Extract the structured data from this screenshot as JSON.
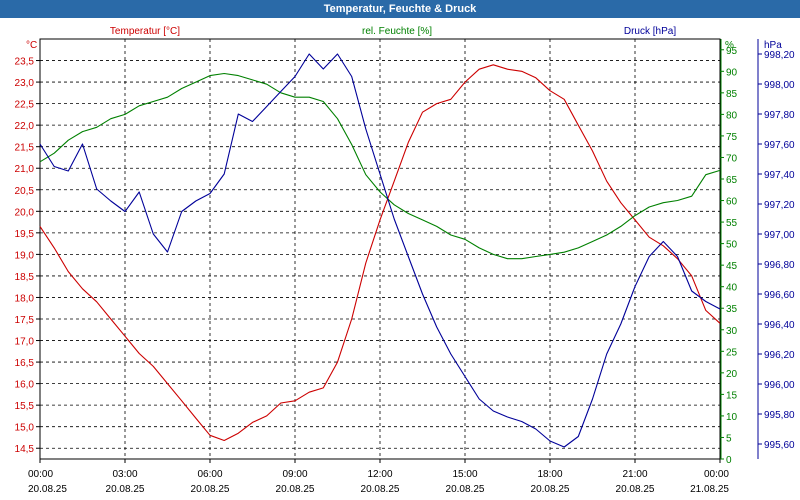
{
  "title": "Temperatur, Feuchte & Druck",
  "chart_data": {
    "type": "line",
    "title": "Temperatur, Feuchte & Druck",
    "x_labels": [
      {
        "time": "00:00",
        "date": "20.08.25"
      },
      {
        "time": "03:00",
        "date": "20.08.25"
      },
      {
        "time": "06:00",
        "date": "20.08.25"
      },
      {
        "time": "09:00",
        "date": "20.08.25"
      },
      {
        "time": "12:00",
        "date": "20.08.25"
      },
      {
        "time": "15:00",
        "date": "20.08.25"
      },
      {
        "time": "18:00",
        "date": "20.08.25"
      },
      {
        "time": "21:00",
        "date": "20.08.25"
      },
      {
        "time": "00:00",
        "date": "21.08.25"
      }
    ],
    "xlim": [
      0,
      24
    ],
    "axes": {
      "temperature": {
        "label": "Temperatur [°C]",
        "unit": "°C",
        "color": "#cc0000",
        "ylim": [
          14.25,
          24.0
        ],
        "ticks": [
          "14,5",
          "15,0",
          "15,5",
          "16,0",
          "16,5",
          "17,0",
          "17,5",
          "18,0",
          "18,5",
          "19,0",
          "19,5",
          "20,0",
          "20,5",
          "21,0",
          "21,5",
          "22,0",
          "22,5",
          "23,0",
          "23,5"
        ]
      },
      "humidity": {
        "label": "rel. Feuchte [%]",
        "unit": "%",
        "color": "#008000",
        "ylim": [
          0,
          97.5
        ],
        "ticks": [
          "0",
          "5",
          "10",
          "15",
          "20",
          "25",
          "30",
          "35",
          "40",
          "45",
          "50",
          "55",
          "60",
          "65",
          "70",
          "75",
          "80",
          "85",
          "90",
          "95"
        ]
      },
      "pressure": {
        "label": "Druck [hPa]",
        "unit": "hPa",
        "color": "#000099",
        "ylim": [
          995.5,
          998.3
        ],
        "ticks": [
          "995,60",
          "995,80",
          "996,00",
          "996,20",
          "996,40",
          "996,60",
          "996,80",
          "997,00",
          "997,20",
          "997,40",
          "997,60",
          "997,80",
          "998,00",
          "998,20"
        ]
      }
    },
    "series": [
      {
        "name": "Temperatur [°C]",
        "axis": "temperature",
        "color": "#cc0000",
        "points": [
          [
            0,
            19.65
          ],
          [
            0.5,
            19.15
          ],
          [
            1,
            18.6
          ],
          [
            1.5,
            18.2
          ],
          [
            2,
            17.9
          ],
          [
            2.5,
            17.5
          ],
          [
            3,
            17.1
          ],
          [
            3.5,
            16.7
          ],
          [
            4,
            16.4
          ],
          [
            4.5,
            16.0
          ],
          [
            5,
            15.6
          ],
          [
            5.5,
            15.2
          ],
          [
            6,
            14.8
          ],
          [
            6.5,
            14.68
          ],
          [
            7,
            14.85
          ],
          [
            7.5,
            15.1
          ],
          [
            8,
            15.25
          ],
          [
            8.5,
            15.55
          ],
          [
            9,
            15.6
          ],
          [
            9.5,
            15.8
          ],
          [
            10,
            15.9
          ],
          [
            10.5,
            16.5
          ],
          [
            11,
            17.5
          ],
          [
            11.5,
            18.8
          ],
          [
            12,
            19.8
          ],
          [
            12.5,
            20.7
          ],
          [
            13,
            21.6
          ],
          [
            13.5,
            22.3
          ],
          [
            14,
            22.5
          ],
          [
            14.5,
            22.6
          ],
          [
            15,
            23.0
          ],
          [
            15.5,
            23.3
          ],
          [
            16,
            23.4
          ],
          [
            16.5,
            23.3
          ],
          [
            17,
            23.25
          ],
          [
            17.5,
            23.1
          ],
          [
            18,
            22.8
          ],
          [
            18.5,
            22.6
          ],
          [
            19,
            22.0
          ],
          [
            19.5,
            21.4
          ],
          [
            20,
            20.7
          ],
          [
            20.5,
            20.2
          ],
          [
            21,
            19.8
          ],
          [
            21.5,
            19.4
          ],
          [
            22,
            19.2
          ],
          [
            22.5,
            18.9
          ],
          [
            23,
            18.5
          ],
          [
            23.5,
            17.7
          ],
          [
            24,
            17.4
          ]
        ]
      },
      {
        "name": "rel. Feuchte [%]",
        "axis": "humidity",
        "color": "#008000",
        "points": [
          [
            0,
            69
          ],
          [
            0.5,
            71
          ],
          [
            1,
            74
          ],
          [
            1.5,
            76
          ],
          [
            2,
            77
          ],
          [
            2.5,
            79
          ],
          [
            3,
            80
          ],
          [
            3.5,
            82
          ],
          [
            4,
            83
          ],
          [
            4.5,
            84
          ],
          [
            5,
            86
          ],
          [
            5.5,
            87.5
          ],
          [
            6,
            89
          ],
          [
            6.5,
            89.5
          ],
          [
            7,
            89
          ],
          [
            7.5,
            88
          ],
          [
            8,
            87
          ],
          [
            8.5,
            85
          ],
          [
            9,
            84
          ],
          [
            9.5,
            84
          ],
          [
            10,
            83
          ],
          [
            10.5,
            79
          ],
          [
            11,
            73
          ],
          [
            11.5,
            66
          ],
          [
            12,
            62
          ],
          [
            12.5,
            59
          ],
          [
            13,
            57
          ],
          [
            13.5,
            55.5
          ],
          [
            14,
            54
          ],
          [
            14.5,
            52
          ],
          [
            15,
            51
          ],
          [
            15.5,
            49
          ],
          [
            16,
            47.5
          ],
          [
            16.5,
            46.5
          ],
          [
            17,
            46.5
          ],
          [
            17.5,
            47
          ],
          [
            18,
            47.5
          ],
          [
            18.5,
            48
          ],
          [
            19,
            49
          ],
          [
            19.5,
            50.5
          ],
          [
            20,
            52
          ],
          [
            20.5,
            54
          ],
          [
            21,
            56.5
          ],
          [
            21.5,
            58.5
          ],
          [
            22,
            59.5
          ],
          [
            22.5,
            60
          ],
          [
            23,
            61
          ],
          [
            23.5,
            66
          ],
          [
            24,
            67
          ]
        ]
      },
      {
        "name": "Druck [hPa]",
        "axis": "pressure",
        "color": "#000099",
        "points": [
          [
            0,
            997.6
          ],
          [
            0.5,
            997.45
          ],
          [
            1,
            997.42
          ],
          [
            1.5,
            997.6
          ],
          [
            2,
            997.3
          ],
          [
            2.5,
            997.22
          ],
          [
            3,
            997.15
          ],
          [
            3.5,
            997.28
          ],
          [
            4,
            997.0
          ],
          [
            4.5,
            996.88
          ],
          [
            5,
            997.15
          ],
          [
            5.5,
            997.22
          ],
          [
            6,
            997.27
          ],
          [
            6.5,
            997.4
          ],
          [
            7,
            997.8
          ],
          [
            7.5,
            997.75
          ],
          [
            8,
            997.85
          ],
          [
            8.5,
            997.95
          ],
          [
            9,
            998.05
          ],
          [
            9.5,
            998.2
          ],
          [
            10,
            998.1
          ],
          [
            10.5,
            998.2
          ],
          [
            11,
            998.05
          ],
          [
            11.5,
            997.7
          ],
          [
            12,
            997.4
          ],
          [
            12.5,
            997.1
          ],
          [
            13,
            996.85
          ],
          [
            13.5,
            996.6
          ],
          [
            14,
            996.38
          ],
          [
            14.5,
            996.2
          ],
          [
            15,
            996.05
          ],
          [
            15.5,
            995.9
          ],
          [
            16,
            995.82
          ],
          [
            16.5,
            995.78
          ],
          [
            17,
            995.75
          ],
          [
            17.5,
            995.7
          ],
          [
            18,
            995.62
          ],
          [
            18.5,
            995.58
          ],
          [
            19,
            995.65
          ],
          [
            19.5,
            995.9
          ],
          [
            20,
            996.2
          ],
          [
            20.5,
            996.4
          ],
          [
            21,
            996.65
          ],
          [
            21.5,
            996.85
          ],
          [
            22,
            996.95
          ],
          [
            22.5,
            996.85
          ],
          [
            23,
            996.62
          ],
          [
            23.5,
            996.55
          ],
          [
            24,
            996.5
          ]
        ]
      }
    ]
  }
}
